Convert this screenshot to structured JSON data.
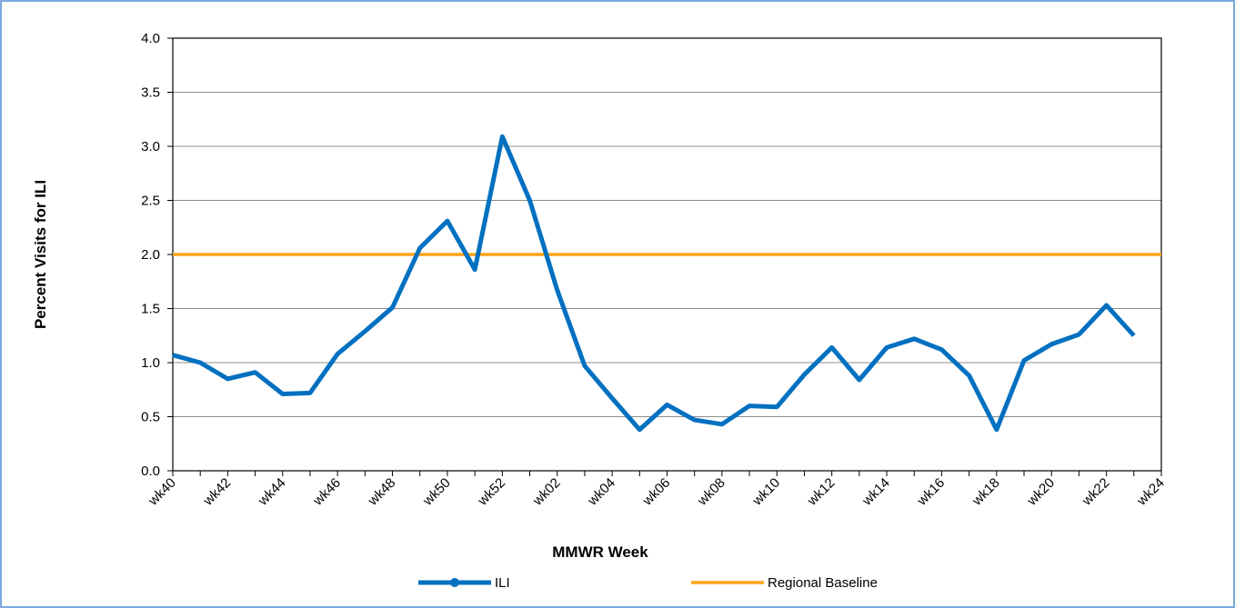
{
  "chart_data": {
    "type": "line",
    "x_label": "MMWR Week",
    "y_label": "Percent Visits for ILI",
    "categories": [
      "wk40",
      null,
      "wk42",
      null,
      "wk44",
      null,
      "wk46",
      null,
      "wk48",
      null,
      "wk50",
      null,
      "wk52",
      null,
      "wk02",
      null,
      "wk04",
      null,
      "wk06",
      null,
      "wk08",
      null,
      "wk10",
      null,
      "wk12",
      null,
      "wk14",
      null,
      "wk16",
      null,
      "wk18",
      null,
      "wk20",
      null,
      "wk22",
      null,
      "wk24"
    ],
    "series": [
      {
        "name": "ILI",
        "color": "#0070c0",
        "marker": true,
        "values": [
          1.07,
          1.0,
          0.85,
          0.91,
          0.71,
          0.72,
          1.08,
          1.29,
          1.51,
          2.06,
          2.31,
          1.86,
          3.09,
          2.5,
          1.67,
          0.97,
          0.67,
          0.38,
          0.61,
          0.47,
          0.43,
          0.6,
          0.59,
          0.89,
          1.14,
          0.84,
          1.14,
          1.22,
          1.12,
          0.88,
          0.38,
          1.02,
          1.17,
          1.26,
          1.53,
          1.25,
          null
        ]
      },
      {
        "name": "Regional Baseline",
        "color": "#ffa31a",
        "marker": false,
        "values": [
          2,
          2,
          2,
          2,
          2,
          2,
          2,
          2,
          2,
          2,
          2,
          2,
          2,
          2,
          2,
          2,
          2,
          2,
          2,
          2,
          2,
          2,
          2,
          2,
          2,
          2,
          2,
          2,
          2,
          2,
          2,
          2,
          2,
          2,
          2,
          2,
          2
        ]
      }
    ],
    "ylim": [
      0,
      4
    ],
    "yticks": [
      {
        "value": 0,
        "label": "0.0"
      },
      {
        "value": 0.5,
        "label": "0.5"
      },
      {
        "value": 1,
        "label": "1.0"
      },
      {
        "value": 1.5,
        "label": "1.5"
      },
      {
        "value": 2,
        "label": "2.0"
      },
      {
        "value": 2.5,
        "label": "2.5"
      },
      {
        "value": 3,
        "label": "3.0"
      },
      {
        "value": 3.5,
        "label": "3.5"
      },
      {
        "value": 4,
        "label": "4.0"
      }
    ],
    "grid": true,
    "legend": "bottom"
  }
}
